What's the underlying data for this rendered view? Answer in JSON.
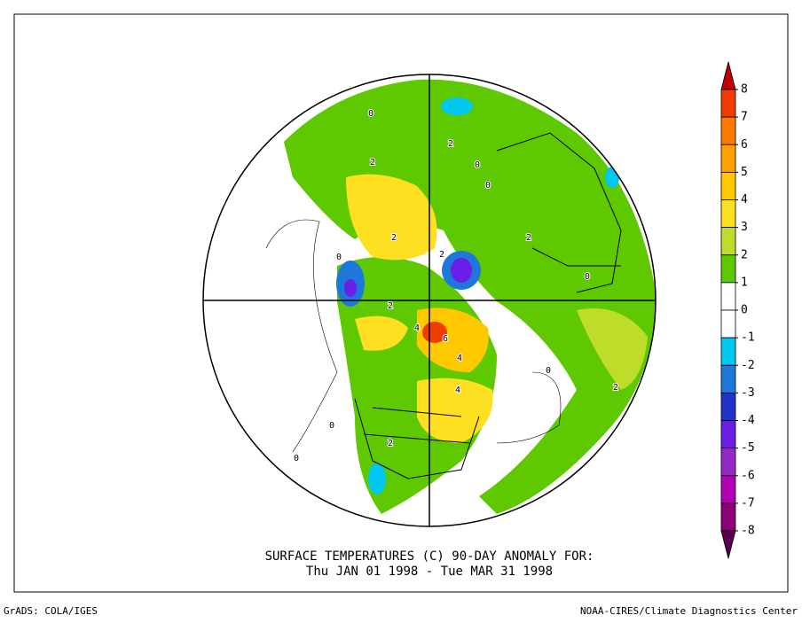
{
  "header": {
    "title_line1": "SURFACE TEMPERATURES (C)   90-DAY ANOMALY FOR:",
    "title_line2": "Thu JAN 01 1998 - Tue MAR 31 1998"
  },
  "footer": {
    "left": "GrADS: COLA/IGES",
    "right": "NOAA-CIRES/Climate Diagnostics Center"
  },
  "colorbar": {
    "levels": [
      8,
      7,
      6,
      5,
      4,
      3,
      2,
      1,
      0,
      -1,
      -2,
      -3,
      -4,
      -5,
      -6,
      -7,
      -8
    ],
    "colors": [
      "#c00000",
      "#f03c00",
      "#ff7800",
      "#ffa000",
      "#ffc800",
      "#ffe020",
      "#bedc2a",
      "#5ec800",
      "#ffffff",
      "#ffffff",
      "#00c8f0",
      "#1e78dc",
      "#2032c8",
      "#6a1ee6",
      "#9628c8",
      "#b400b4",
      "#8c0078",
      "#5a0050"
    ]
  },
  "map": {
    "contour_labels": [
      "0",
      "2",
      "0",
      "2",
      "0",
      "2",
      "2",
      "4",
      "6",
      "4",
      "2",
      "0",
      "0",
      "2",
      "0",
      "0",
      "2",
      "4",
      "2",
      "0"
    ]
  }
}
